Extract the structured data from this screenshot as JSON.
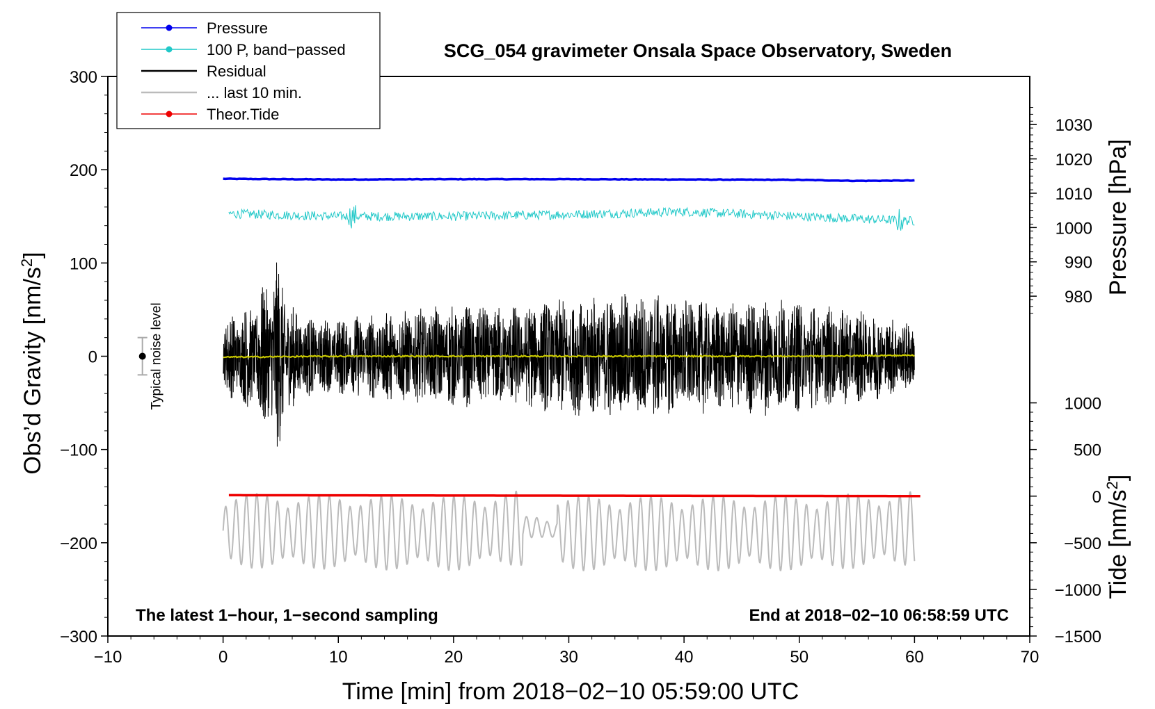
{
  "chart_data": {
    "type": "line",
    "title": "SCG_054 gravimeter Onsala Space Observatory, Sweden",
    "xlabel": "Time [min] from 2018−02−10 05:59:00 UTC",
    "ylabel": "Obs’d Gravity [nm/s",
    "ylabel_sup": "2",
    "ylabel_end": "]",
    "pressure_axis_label": "Pressure [hPa]",
    "tide_axis_label": "Tide [nm/s",
    "tide_axis_sup": "2",
    "tide_axis_end": "]",
    "xlim": [
      -10,
      70
    ],
    "ylim": [
      -300,
      300
    ],
    "x_ticks": [
      -10,
      0,
      10,
      20,
      30,
      40,
      50,
      60,
      70
    ],
    "x_tick_labels": [
      "−10",
      "0",
      "10",
      "20",
      "30",
      "40",
      "50",
      "60",
      "70"
    ],
    "y_ticks": [
      -300,
      -200,
      -100,
      0,
      100,
      200,
      300
    ],
    "y_tick_labels": [
      "−300",
      "−200",
      "−100",
      "0",
      "100",
      "200",
      "300"
    ],
    "pressure_axis": {
      "gravity_at_1000hPa": 138,
      "gravity_per_hPa": 3.68,
      "ticks": [
        980,
        990,
        1000,
        1010,
        1020,
        1030
      ],
      "tick_labels": [
        "980",
        "990",
        "1000",
        "1010",
        "1020",
        "1030"
      ]
    },
    "tide_axis": {
      "gravity_at_zero": -150,
      "gravity_per_500": 50,
      "ticks": [
        -1500,
        -1000,
        -500,
        0,
        500,
        1000
      ],
      "tick_labels": [
        "−1500",
        "−1000",
        "−500",
        "0",
        "500",
        "1000"
      ]
    },
    "series": [
      {
        "name": "Pressure",
        "color": "#0000ee",
        "axis": "pressure",
        "x": [
          0,
          10,
          20,
          30,
          40,
          50,
          55,
          60
        ],
        "values": [
          1014.2,
          1014.0,
          1014.1,
          1014.1,
          1014.0,
          1013.9,
          1013.6,
          1013.7
        ]
      },
      {
        "name": "100 P, band−passed",
        "color": "#20c8c8",
        "axis": "gravity",
        "x": [
          0,
          10,
          20,
          30,
          40,
          50,
          60
        ],
        "values": [
          153,
          150,
          150,
          152,
          155,
          150,
          145
        ],
        "amplitude": 5
      },
      {
        "name": "Residual",
        "color": "#000000",
        "axis": "gravity",
        "x": [
          0,
          5,
          10,
          20,
          30,
          40,
          50,
          60
        ],
        "values": [
          0,
          0,
          0,
          0,
          0,
          0,
          0,
          0
        ],
        "envelope_x": [
          0,
          2,
          3,
          4,
          4.6,
          5,
          6,
          8,
          12,
          15,
          20,
          26,
          30,
          37,
          43,
          48,
          52,
          56,
          60
        ],
        "envelope": [
          40,
          55,
          65,
          90,
          105,
          95,
          55,
          40,
          45,
          50,
          55,
          55,
          65,
          70,
          60,
          65,
          55,
          50,
          35
        ]
      },
      {
        "name": "Residual mean",
        "color": "#c8c800",
        "axis": "gravity",
        "x": [
          0,
          10,
          20,
          30,
          40,
          50,
          60
        ],
        "values": [
          -1,
          0,
          0,
          0,
          0,
          0,
          1
        ]
      },
      {
        "name": "... last 10 min.",
        "color": "#bbbbbb",
        "axis": "gravity",
        "x": [
          0,
          20,
          27,
          30,
          40,
          50,
          60
        ],
        "values": [
          -187,
          -190,
          -183,
          -190,
          -190,
          -190,
          -185
        ],
        "amplitude": 40,
        "period_min": 0.9
      },
      {
        "name": "Theor.Tide",
        "color": "#ee0000",
        "axis": "tide",
        "x": [
          0.5,
          30,
          60.5
        ],
        "values": [
          10,
          5,
          0
        ]
      }
    ],
    "legend": {
      "placement": "top-left",
      "entries": [
        {
          "label": "Pressure",
          "color": "#0000ee",
          "marker": true
        },
        {
          "label": "100 P, band−passed",
          "color": "#20c8c8",
          "marker": true
        },
        {
          "label": "Residual",
          "color": "#000000",
          "marker": false
        },
        {
          "label": "... last 10 min.",
          "color": "#bbbbbb",
          "marker": false
        },
        {
          "label": "Theor.Tide",
          "color": "#ee0000",
          "marker": true
        }
      ]
    },
    "noise_level": {
      "label": "Typical noise level",
      "center": 0,
      "half_range": 20,
      "x": -7
    },
    "annotations": {
      "bottom_left": "The latest 1−hour, 1−second sampling",
      "bottom_right": "End at 2018−02−10 06:58:59 UTC"
    }
  }
}
